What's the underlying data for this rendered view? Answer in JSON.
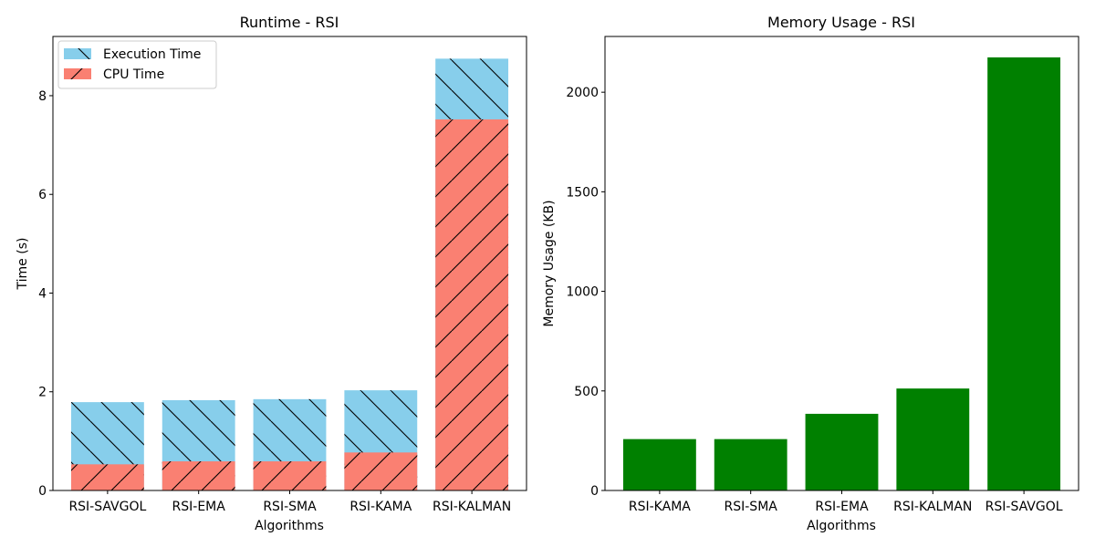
{
  "chart_data": [
    {
      "type": "bar",
      "stacked": "overlay",
      "title": "Runtime - RSI",
      "xlabel": "Algorithms",
      "ylabel": "Time (s)",
      "categories": [
        "RSI-SAVGOL",
        "RSI-EMA",
        "RSI-SMA",
        "RSI-KAMA",
        "RSI-KALMAN"
      ],
      "ylim": [
        0,
        9.2
      ],
      "yticks": [
        0,
        2,
        4,
        6,
        8
      ],
      "legend_position": "top-left",
      "series": [
        {
          "name": "Execution Time",
          "color": "#87ceeb",
          "hatch": "backslash",
          "values": [
            1.79,
            1.83,
            1.85,
            2.03,
            8.75
          ]
        },
        {
          "name": "CPU Time",
          "color": "#fa8072",
          "hatch": "slash",
          "values": [
            0.53,
            0.59,
            0.59,
            0.77,
            7.52
          ]
        }
      ]
    },
    {
      "type": "bar",
      "title": "Memory Usage - RSI",
      "xlabel": "Algorithms",
      "ylabel": "Memory Usage (KB)",
      "categories": [
        "RSI-KAMA",
        "RSI-SMA",
        "RSI-EMA",
        "RSI-KALMAN",
        "RSI-SAVGOL"
      ],
      "ylim": [
        0,
        2280
      ],
      "yticks": [
        0,
        500,
        1000,
        1500,
        2000
      ],
      "color": "#008000",
      "values": [
        258,
        258,
        385,
        512,
        2175
      ]
    }
  ]
}
